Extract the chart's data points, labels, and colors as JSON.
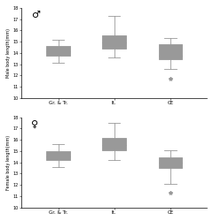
{
  "male_boxes": [
    {
      "whislo": 13.1,
      "q1": 13.8,
      "med": 14.15,
      "q3": 14.65,
      "whishi": 15.2,
      "fliers": []
    },
    {
      "whislo": 13.6,
      "q1": 14.4,
      "med": 14.95,
      "q3": 15.55,
      "whishi": 17.3,
      "fliers": []
    },
    {
      "whislo": 12.6,
      "q1": 13.45,
      "med": 13.75,
      "q3": 14.75,
      "whishi": 15.3,
      "fliers": [
        11.7
      ]
    }
  ],
  "female_boxes": [
    {
      "whislo": 13.6,
      "q1": 14.2,
      "med": 14.55,
      "q3": 14.95,
      "whishi": 15.6,
      "fliers": []
    },
    {
      "whislo": 14.2,
      "q1": 15.1,
      "med": 15.55,
      "q3": 16.15,
      "whishi": 17.5,
      "fliers": []
    },
    {
      "whislo": 12.1,
      "q1": 13.5,
      "med": 13.95,
      "q3": 14.4,
      "whishi": 15.1,
      "fliers": [
        11.3
      ]
    }
  ],
  "xlabels": [
    "Gr. & Tr.",
    "It.",
    "CE"
  ],
  "male_ylabel": "Male body length(mm)",
  "female_ylabel": "Female body length(mm)",
  "male_symbol": "♂",
  "female_symbol": "♀",
  "ylim": [
    10,
    18
  ],
  "yticks": [
    10,
    11,
    12,
    13,
    14,
    15,
    16,
    17,
    18
  ],
  "box_facecolor": "#ffffff",
  "box_edgecolor": "#999999",
  "median_color": "#999999",
  "whisker_color": "#999999",
  "flier_color": "#999999",
  "flier_marker": "*"
}
